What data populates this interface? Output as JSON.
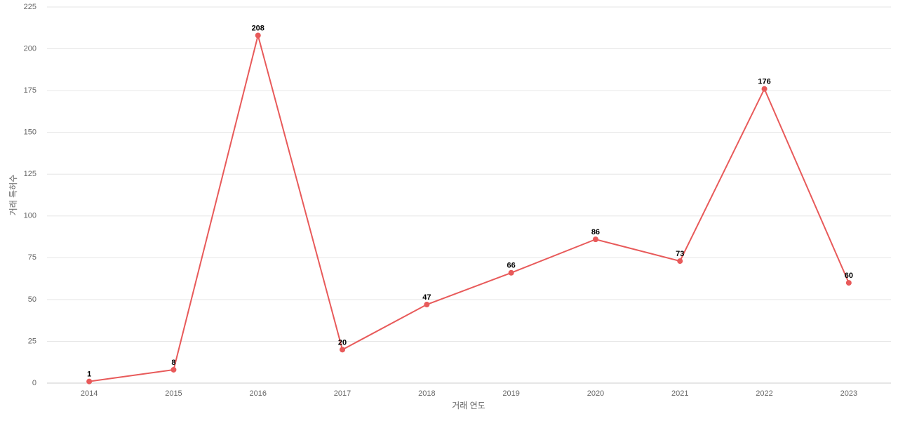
{
  "chart_data": {
    "type": "line",
    "x_label": "거래 연도",
    "y_label": "거래 특허수",
    "categories": [
      "2014",
      "2015",
      "2016",
      "2017",
      "2018",
      "2019",
      "2020",
      "2021",
      "2022",
      "2023"
    ],
    "series": [
      {
        "name": "거래 특허수",
        "color": "#e85a5a",
        "values": [
          1,
          8,
          208,
          20,
          47,
          66,
          86,
          73,
          176,
          60
        ]
      }
    ],
    "ylim": [
      0,
      225
    ],
    "yticks": [
      0,
      25,
      50,
      75,
      100,
      125,
      150,
      175,
      200,
      225
    ],
    "grid": true,
    "legend": false
  }
}
